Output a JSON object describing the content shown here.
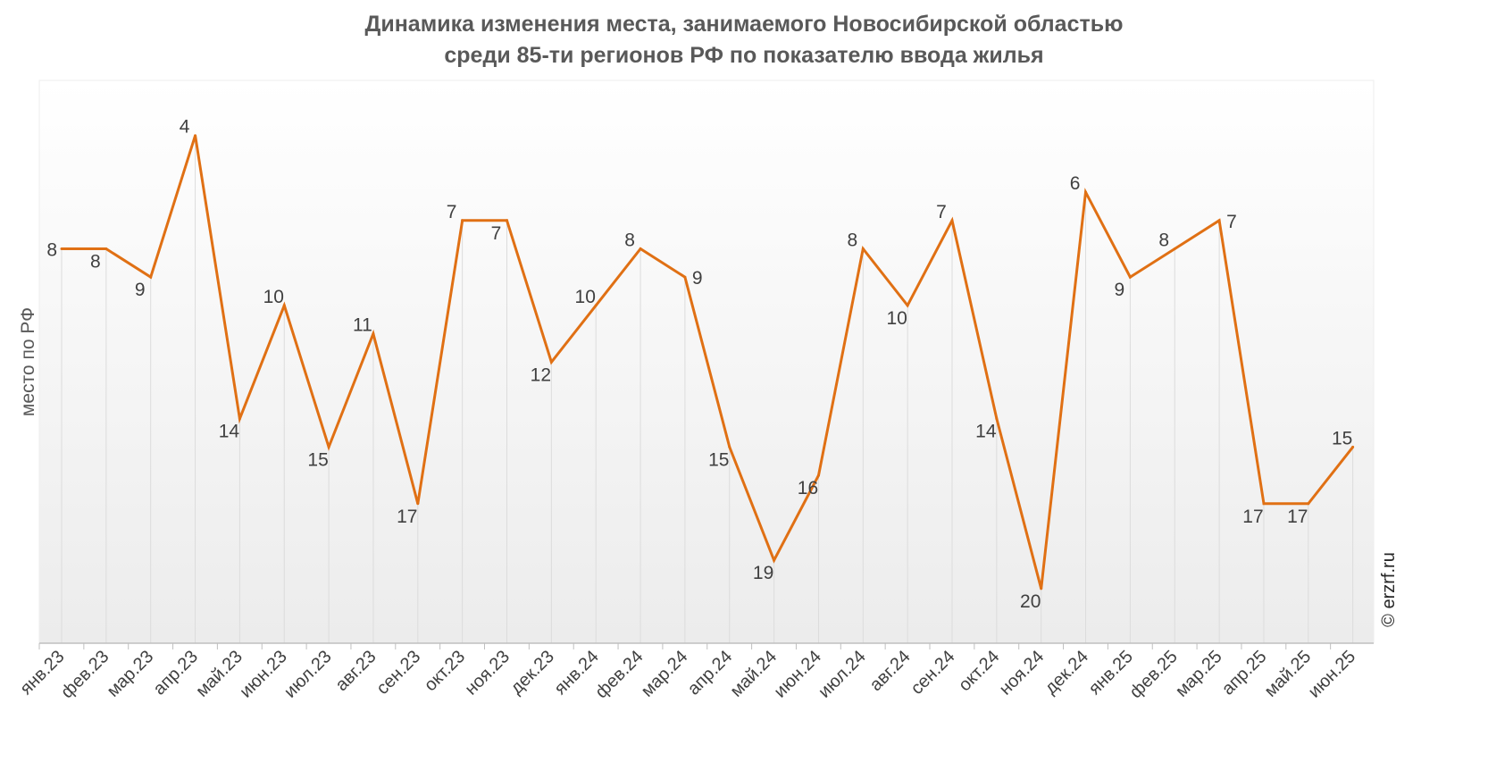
{
  "chart_data": {
    "type": "line",
    "title_lines": [
      "Динамика изменения места, занимаемого Новосибирской областью",
      "среди 85-ти регионов РФ по показателю ввода жилья"
    ],
    "xlabel": "",
    "ylabel": "место по РФ",
    "y_inverted": true,
    "ylim": [
      1,
      22
    ],
    "grid": false,
    "drop_lines": true,
    "categories": [
      "янв.23",
      "фев.23",
      "мар.23",
      "апр.23",
      "май.23",
      "июн.23",
      "июл.23",
      "авг.23",
      "сен.23",
      "окт.23",
      "ноя.23",
      "дек.23",
      "янв.24",
      "фев.24",
      "мар.24",
      "апр.24",
      "май.24",
      "июн.24",
      "июл.24",
      "авг.24",
      "сен.24",
      "окт.24",
      "ноя.24",
      "дек.24",
      "янв.25",
      "фев.25",
      "мар.25",
      "апр.25",
      "май.25",
      "июн.25"
    ],
    "series": [
      {
        "name": "",
        "color": "#E07014",
        "values": [
          8,
          8,
          9,
          4,
          14,
          10,
          15,
          11,
          17,
          7,
          7,
          12,
          10,
          8,
          9,
          15,
          19,
          16,
          8,
          10,
          7,
          14,
          20,
          6,
          9,
          8,
          7,
          17,
          17,
          15
        ]
      }
    ],
    "label_positions": [
      "left",
      "below",
      "below",
      "above",
      "below",
      "above",
      "below",
      "above",
      "below",
      "above",
      "below",
      "below",
      "above",
      "above",
      "right",
      "below",
      "below",
      "below",
      "above",
      "below",
      "above",
      "below",
      "below",
      "above",
      "below",
      "above",
      "right",
      "below",
      "below",
      "above"
    ]
  },
  "watermark": "© erzrf.ru",
  "colors": {
    "line": "#E07014",
    "text": "#404040",
    "title": "#595959",
    "drop_line": "#d9d9d9",
    "axis": "#bfbfbf"
  }
}
